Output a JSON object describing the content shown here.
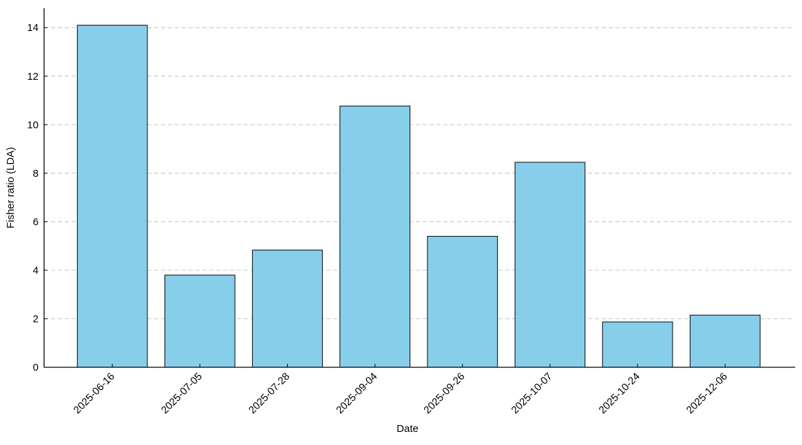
{
  "chart_data": {
    "type": "bar",
    "x_label": "Date",
    "y_label": "Fisher ratio (LDA)",
    "categories": [
      "2025-06-16",
      "2025-07-05",
      "2025-07-28",
      "2025-09-04",
      "2025-09-26",
      "2025-10-07",
      "2025-10-24",
      "2025-12-06"
    ],
    "values": [
      14.1,
      3.8,
      4.83,
      10.77,
      5.4,
      8.45,
      1.87,
      2.15
    ],
    "color": "#87ceeb",
    "ylim": [
      0,
      14.8
    ],
    "yticks": [
      0,
      2,
      4,
      6,
      8,
      10,
      12,
      14
    ],
    "grid": true
  }
}
